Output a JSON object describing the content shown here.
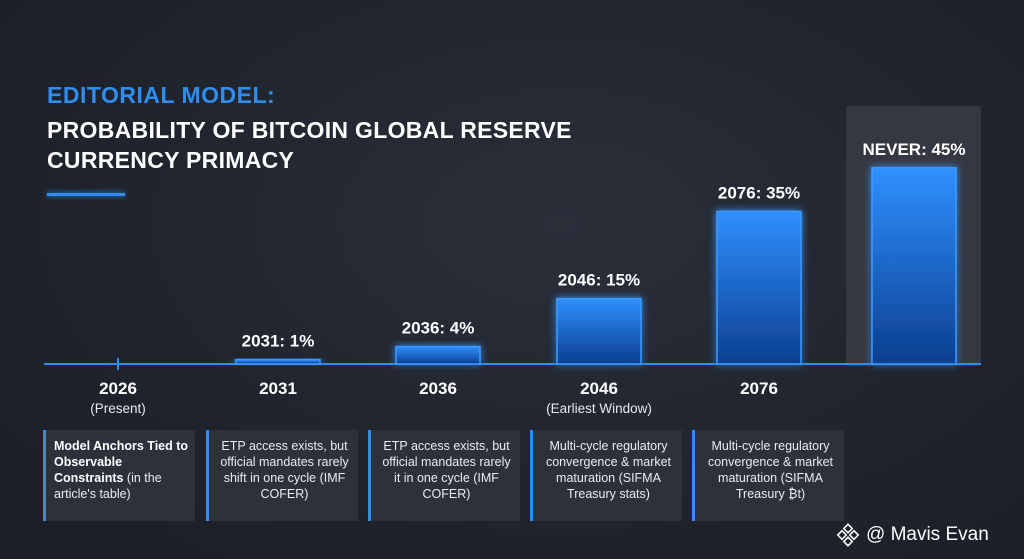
{
  "header": {
    "eyebrow": "EDITORIAL MODEL:",
    "title_line1": "PROBABILITY OF BITCOIN GLOBAL RESERVE",
    "title_line2": "CURRENCY PRIMACY"
  },
  "chart_data": {
    "type": "bar",
    "title": "PROBABILITY OF BITCOIN GLOBAL RESERVE CURRENCY PRIMACY",
    "categories": [
      "2026",
      "2031",
      "2036",
      "2046",
      "2076",
      "NEVER"
    ],
    "category_sublabels": [
      "(Present)",
      "",
      "",
      "(Earliest Window)",
      "",
      ""
    ],
    "values": [
      0,
      1,
      4,
      15,
      35,
      45
    ],
    "value_labels": [
      "",
      "2031: 1%",
      "2036: 4%",
      "2046: 15%",
      "2076: 35%",
      "NEVER: 45%"
    ],
    "unit": "%",
    "ylim": [
      0,
      50
    ],
    "grid": false,
    "legend": "none"
  },
  "notes": [
    {
      "bold": "Model Anchors Tied to Observable Constraints",
      "text": " (in the article's table)"
    },
    {
      "bold": "",
      "text": "ETP access exists, but official mandates rarely shift in one cycle (IMF COFER)"
    },
    {
      "bold": "",
      "text": "ETP access exists, but official mandates rarely it in one cycle (IMF COFER)"
    },
    {
      "bold": "",
      "text": "Multi-cycle regulatory convergence & market maturation (SIFMA Treasury stats)"
    },
    {
      "bold": "",
      "text": "Multi-cycle regulatory convergence & market maturation (SIFMA Treasury ₿t)"
    }
  ],
  "watermark": {
    "text": "@ Mavis Evan",
    "icon": "binance-logo-icon"
  },
  "colors": {
    "accent": "#2f8df0",
    "bar_top": "#2d8cff",
    "bar_bottom": "#0b3f8f",
    "background": "#20242d"
  }
}
